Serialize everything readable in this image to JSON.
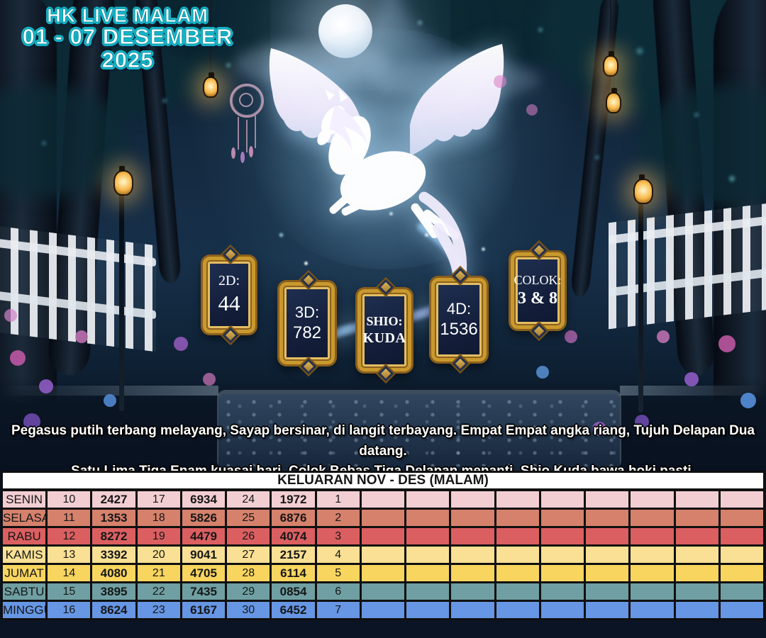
{
  "scene": {
    "title_line1": "HK LIVE MALAM",
    "title_line2": "01 - 07 DESEMBER 2025",
    "poem_line1": "Pegasus putih terbang melayang, Sayap bersinar, di langit terbayang. Empat Empat angka riang, Tujuh Delapan Dua datang.",
    "poem_line2": "Satu Lima Tiga Enam kuasai hari, Colok Bebas Tiga Delapan menanti. Shio Kuda bawa hoki pasti.",
    "illustration": "white-pegasus-in-moonlit-forest",
    "colors": {
      "title_outline": "#17b4c7",
      "plaque_gold": "#c9992e",
      "plaque_background": "#16233f"
    },
    "plaques": [
      {
        "label": "2D:",
        "value": "44"
      },
      {
        "label": "3D:",
        "value": "782"
      },
      {
        "label": "SHIO:",
        "value": "KUDA"
      },
      {
        "label": "4D:",
        "value": "1536"
      },
      {
        "label": "COLOK:",
        "value": "3 & 8"
      }
    ]
  },
  "table": {
    "title": "KELUARAN NOV - DES (MALAM)",
    "rows": [
      {
        "day": "SENIN",
        "color": "#f2ced2",
        "cells": [
          "10",
          "2427",
          "17",
          "6934",
          "24",
          "1972",
          "1",
          "",
          "",
          "",
          "",
          "",
          "",
          "",
          "",
          ""
        ]
      },
      {
        "day": "SELASA",
        "color": "#d5816c",
        "cells": [
          "11",
          "1353",
          "18",
          "5826",
          "25",
          "6876",
          "2",
          "",
          "",
          "",
          "",
          "",
          "",
          "",
          "",
          ""
        ]
      },
      {
        "day": "RABU",
        "color": "#db5f61",
        "cells": [
          "12",
          "8272",
          "19",
          "4479",
          "26",
          "4074",
          "3",
          "",
          "",
          "",
          "",
          "",
          "",
          "",
          "",
          ""
        ]
      },
      {
        "day": "KAMIS",
        "color": "#f9e095",
        "cells": [
          "13",
          "3392",
          "20",
          "9041",
          "27",
          "2157",
          "4",
          "",
          "",
          "",
          "",
          "",
          "",
          "",
          "",
          ""
        ]
      },
      {
        "day": "JUMAT",
        "color": "#f8d55e",
        "cells": [
          "14",
          "4080",
          "21",
          "4705",
          "28",
          "6114",
          "5",
          "",
          "",
          "",
          "",
          "",
          "",
          "",
          "",
          ""
        ]
      },
      {
        "day": "SABTU",
        "color": "#6f9fa2",
        "cells": [
          "15",
          "3895",
          "22",
          "7435",
          "29",
          "0854",
          "6",
          "",
          "",
          "",
          "",
          "",
          "",
          "",
          "",
          ""
        ]
      },
      {
        "day": "MINGGU",
        "color": "#6696e4",
        "cells": [
          "16",
          "8624",
          "23",
          "6167",
          "30",
          "6452",
          "7",
          "",
          "",
          "",
          "",
          "",
          "",
          "",
          "",
          ""
        ]
      }
    ]
  }
}
